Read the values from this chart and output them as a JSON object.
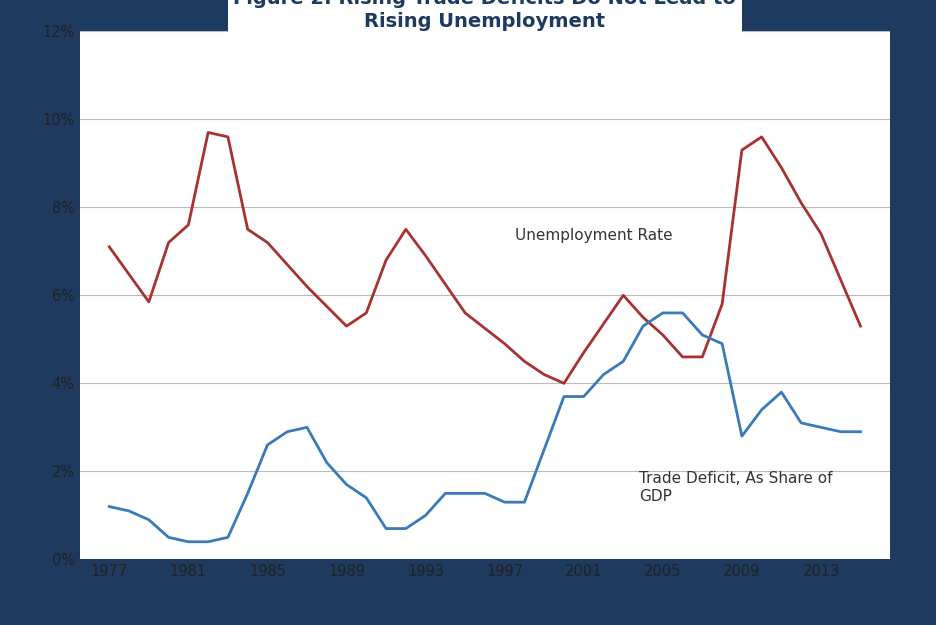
{
  "title_line2": "Rising Unemployment",
  "background_color": "#1e3a5f",
  "chart_bg": "#ffffff",
  "x_ticks": [
    1977,
    1981,
    1985,
    1989,
    1993,
    1997,
    2001,
    2005,
    2009,
    2013
  ],
  "ylim": [
    0,
    12
  ],
  "yticks": [
    0,
    2,
    4,
    6,
    8,
    10,
    12
  ],
  "unemployment_label": "Unemployment Rate",
  "trade_label": "Trade Deficit, As Share of\nGDP",
  "unemployment_color": "#a83232",
  "trade_color": "#3a7ab8",
  "unemployment_x": [
    1977,
    1979,
    1980,
    1981,
    1982,
    1983,
    1984,
    1985,
    1987,
    1989,
    1990,
    1991,
    1992,
    1993,
    1995,
    1997,
    1998,
    1999,
    2000,
    2001,
    2003,
    2004,
    2005,
    2006,
    2007,
    2008,
    2009,
    2010,
    2011,
    2012,
    2013,
    2015
  ],
  "unemployment_y": [
    7.1,
    5.85,
    7.2,
    7.6,
    9.7,
    9.6,
    7.5,
    7.2,
    6.2,
    5.3,
    5.6,
    6.8,
    7.5,
    6.9,
    5.6,
    4.9,
    4.5,
    4.2,
    4.0,
    4.7,
    6.0,
    5.5,
    5.1,
    4.6,
    4.6,
    5.8,
    9.3,
    9.6,
    8.9,
    8.1,
    7.4,
    5.3
  ],
  "trade_x": [
    1977,
    1978,
    1979,
    1980,
    1981,
    1982,
    1983,
    1984,
    1985,
    1986,
    1987,
    1988,
    1989,
    1990,
    1991,
    1992,
    1993,
    1994,
    1995,
    1996,
    1997,
    1998,
    1999,
    2000,
    2001,
    2002,
    2003,
    2004,
    2005,
    2006,
    2007,
    2008,
    2009,
    2010,
    2011,
    2012,
    2013,
    2014,
    2015
  ],
  "trade_y": [
    1.2,
    1.1,
    0.9,
    0.5,
    0.4,
    0.4,
    0.5,
    1.5,
    2.6,
    2.9,
    3.0,
    2.2,
    1.7,
    1.4,
    0.7,
    0.7,
    1.0,
    1.5,
    1.5,
    1.5,
    1.3,
    1.3,
    2.5,
    3.7,
    3.7,
    4.2,
    4.5,
    5.3,
    5.6,
    5.6,
    5.1,
    4.9,
    2.8,
    3.4,
    3.8,
    3.1,
    3.0,
    2.9,
    2.9
  ]
}
